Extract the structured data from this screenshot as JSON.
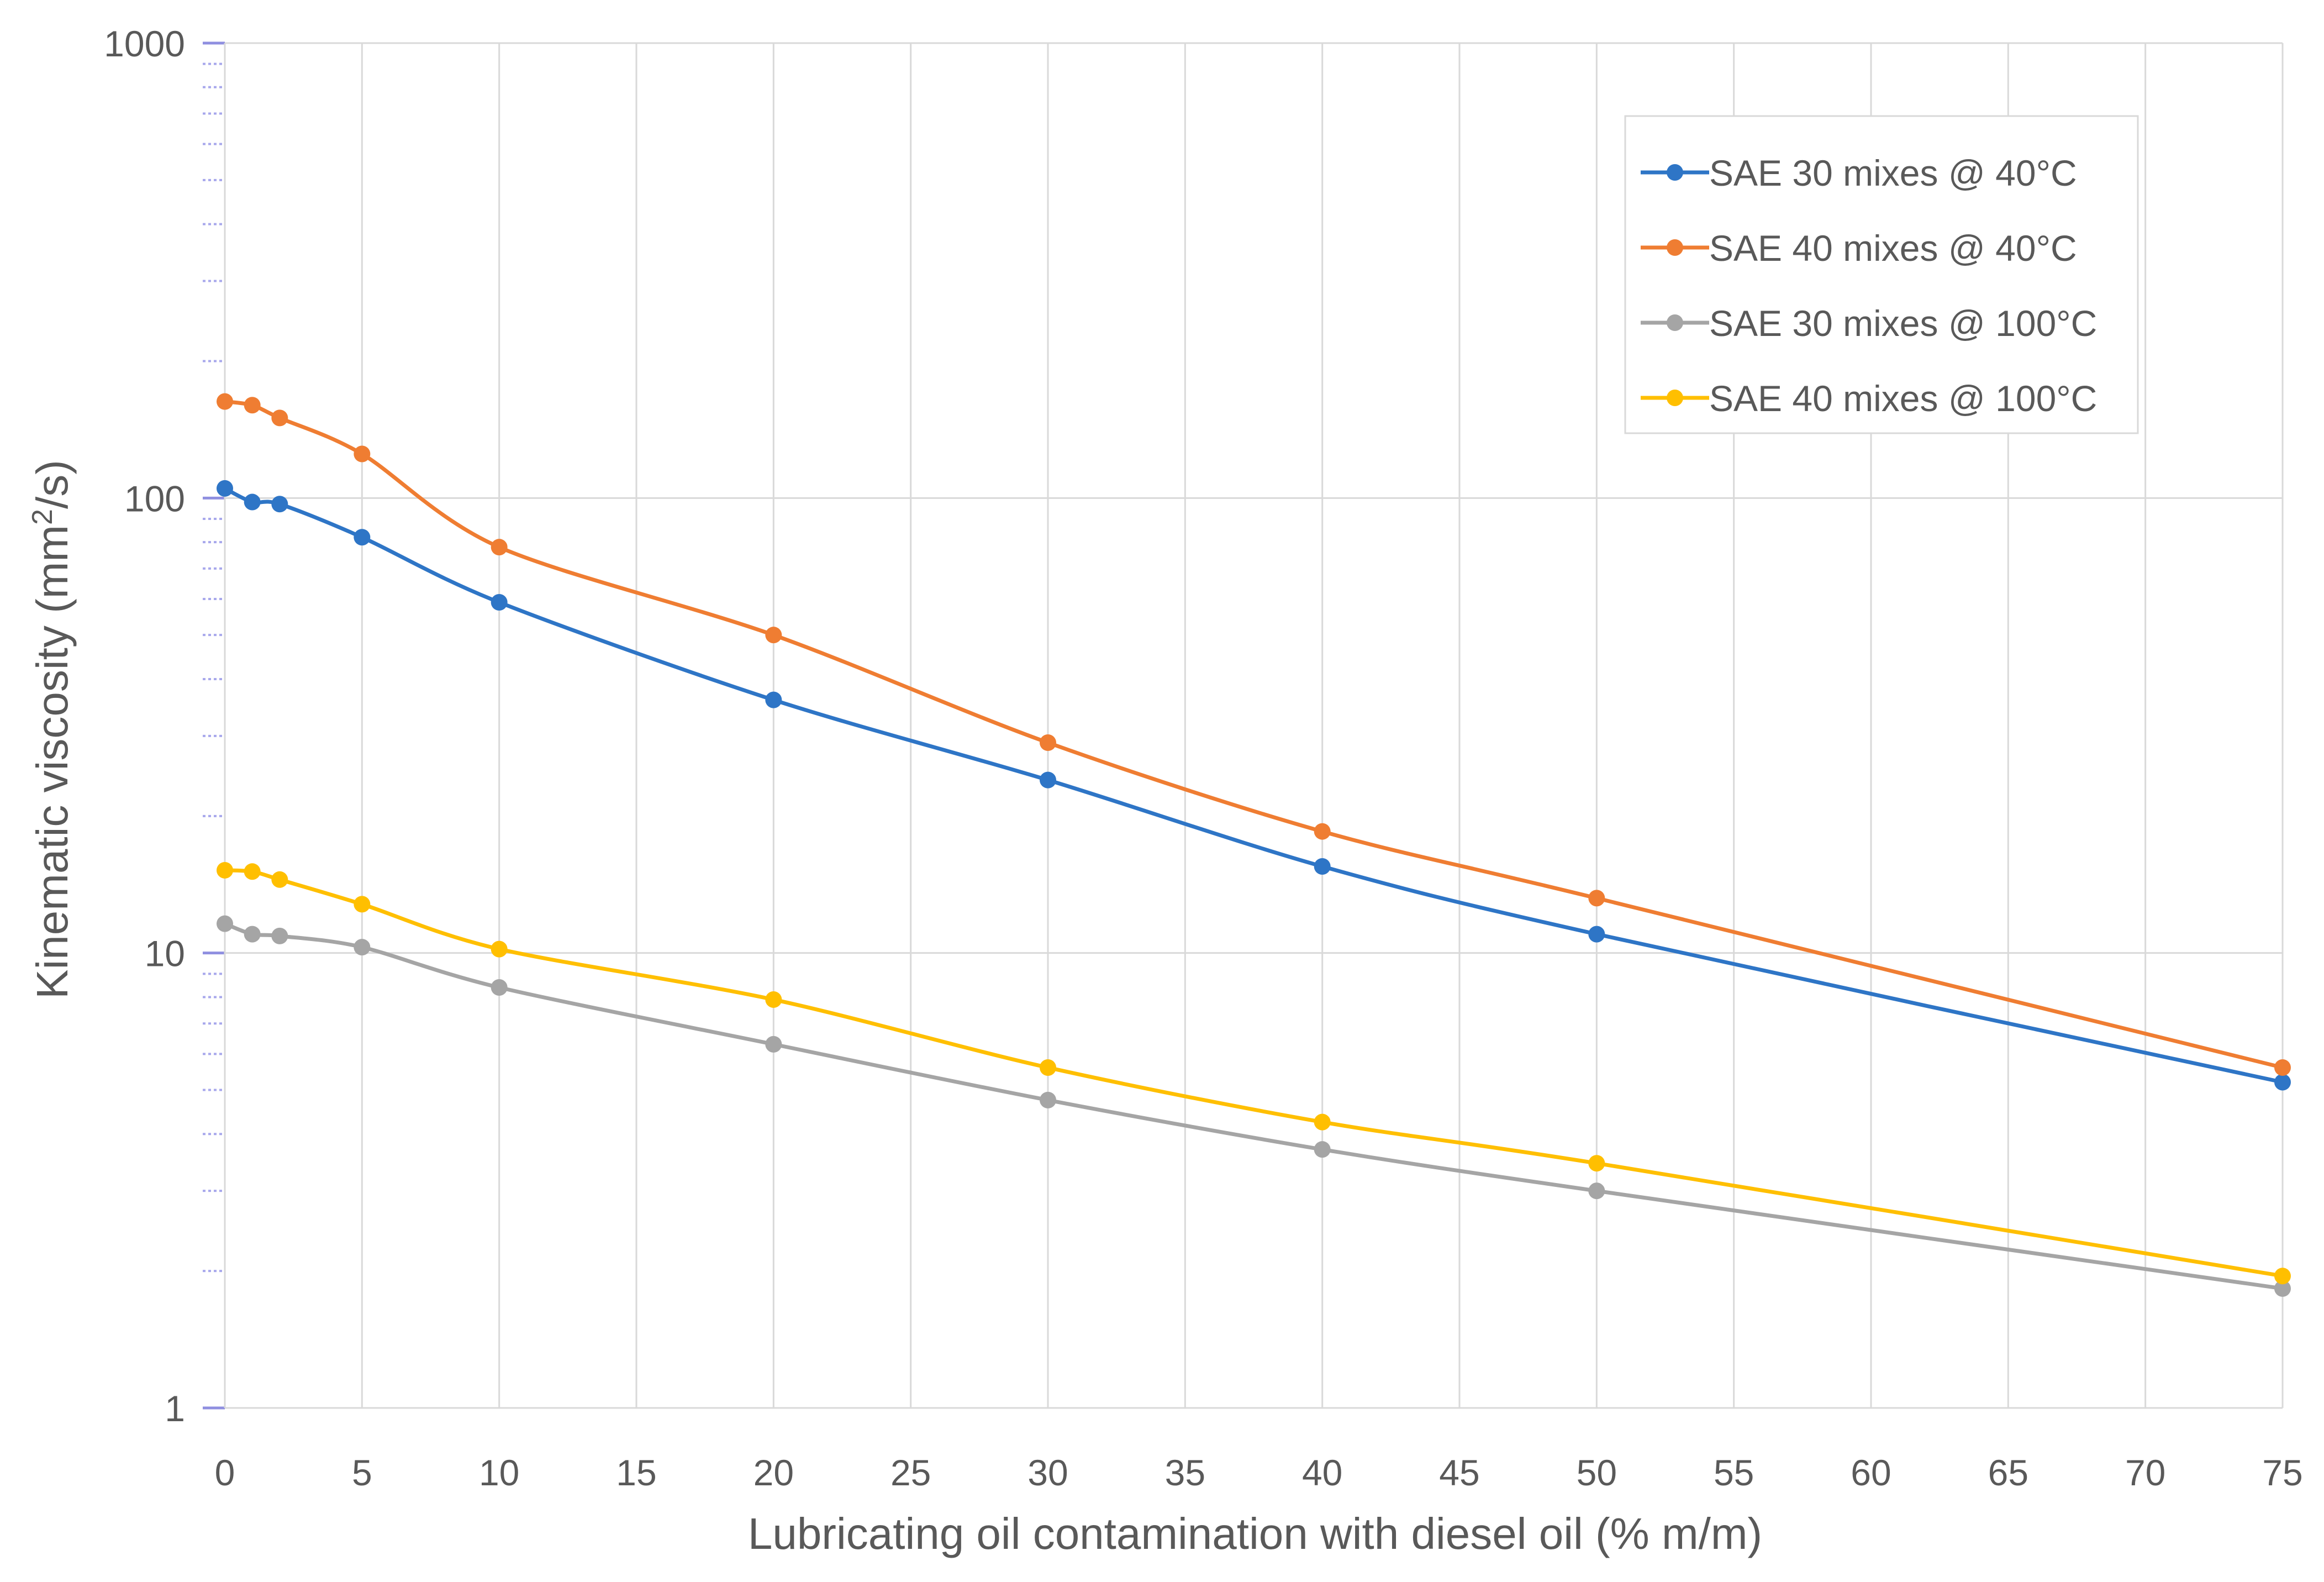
{
  "chart_data": {
    "type": "line",
    "title": "",
    "xlabel": "Lubricating oil contamination with diesel oil (% m/m)",
    "ylabel": {
      "prefix": "Kinematic viscosity (mm",
      "sup": "2",
      "suffix": "/s)"
    },
    "yscale": "log",
    "xlim": [
      0,
      75
    ],
    "ylim": [
      1,
      1000
    ],
    "x_ticks": [
      "0",
      "5",
      "10",
      "15",
      "20",
      "25",
      "30",
      "35",
      "40",
      "45",
      "50",
      "55",
      "60",
      "65",
      "70",
      "75"
    ],
    "y_ticks": [
      "1",
      "10",
      "100",
      "1000"
    ],
    "grid": true,
    "legend_position": "top-right",
    "x": [
      0,
      1,
      2,
      5,
      10,
      20,
      30,
      40,
      50,
      75
    ],
    "series": [
      {
        "name": "SAE 30 mixes @ 40°C",
        "color": "#2e75c6",
        "values": [
          105,
          98,
          97,
          82,
          59,
          36,
          24,
          15.5,
          11,
          5.2
        ]
      },
      {
        "name": "SAE 40 mixes @ 40°C",
        "color": "#ef7d32",
        "values": [
          163,
          160,
          150,
          125,
          78,
          50,
          29,
          18.5,
          13.2,
          5.6
        ]
      },
      {
        "name": "SAE 30 mixes @ 100°C",
        "color": "#a5a5a5",
        "values": [
          11.6,
          11,
          10.9,
          10.3,
          8.4,
          6.3,
          4.75,
          3.7,
          3,
          1.83
        ]
      },
      {
        "name": "SAE 40 mixes @ 100°C",
        "color": "#ffbf00",
        "values": [
          15.2,
          15.1,
          14.5,
          12.8,
          10.2,
          7.9,
          5.6,
          4.25,
          3.45,
          1.95
        ]
      }
    ]
  }
}
